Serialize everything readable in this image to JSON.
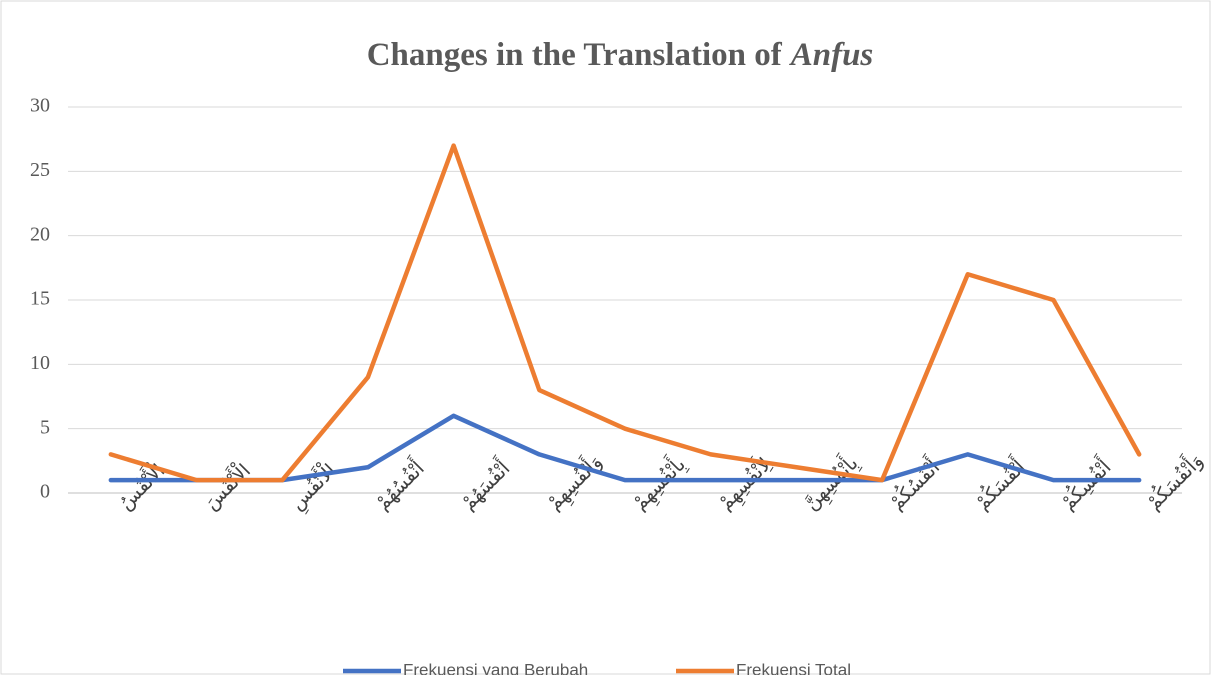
{
  "chart_data": {
    "type": "line",
    "title": {
      "text": "Changes in the Translation of",
      "emphasis": "Anfus"
    },
    "categories": [
      "الْأَنْفُسُ",
      "الْأَنْفُسَ",
      "الْأَنْفُسِ",
      "أَنْفُسُهُمْ",
      "أَنْفُسَهُمْ",
      "وَأَنْفُسِهِمْ",
      "بِأَنْفُسِهِمْ",
      "لِأَنْفُسِهِمْ",
      "بِأَنْفُسِهِنَّ",
      "أَنْفُسُكُمْ",
      "أَنْفُسَكُمْ",
      "أَنْفُسِكُمْ",
      "وَأَنْفُسَكُمْ"
    ],
    "series": [
      {
        "name": "Frekuensi yang Berubah",
        "color": "#4472c4",
        "values": [
          1,
          1,
          1,
          2,
          6,
          3,
          1,
          1,
          1,
          1,
          3,
          1,
          1
        ]
      },
      {
        "name": "Frekuensi Total",
        "color": "#ed7d31",
        "values": [
          3,
          1,
          1,
          9,
          27,
          8,
          5,
          3,
          2,
          1,
          17,
          15,
          3
        ]
      }
    ],
    "ylim": [
      0,
      30
    ],
    "yticks": [
      0,
      5,
      10,
      15,
      20,
      25,
      30
    ],
    "grid": true,
    "legend": "bottom"
  }
}
